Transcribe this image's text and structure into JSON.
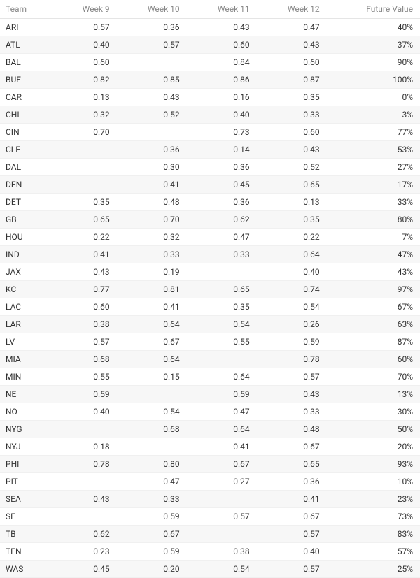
{
  "table": {
    "columns": [
      "Team",
      "Week 9",
      "Week 10",
      "Week 11",
      "Week 12",
      "Future Value"
    ],
    "column_classes": [
      "col-team",
      "col-week",
      "col-week",
      "col-week",
      "col-week",
      "col-future"
    ],
    "header_color": "#888888",
    "text_color": "#333333",
    "row_alt_bg": "#f7f7f7",
    "row_bg": "#ffffff",
    "border_color": "#e5e5e5",
    "fontsize": 12,
    "rows": [
      [
        "ARI",
        "0.57",
        "0.36",
        "0.43",
        "0.47",
        "40%"
      ],
      [
        "ATL",
        "0.40",
        "0.57",
        "0.60",
        "0.43",
        "37%"
      ],
      [
        "BAL",
        "0.60",
        "",
        "0.84",
        "0.60",
        "90%"
      ],
      [
        "BUF",
        "0.82",
        "0.85",
        "0.86",
        "0.87",
        "100%"
      ],
      [
        "CAR",
        "0.13",
        "0.43",
        "0.16",
        "0.35",
        "0%"
      ],
      [
        "CHI",
        "0.32",
        "0.52",
        "0.40",
        "0.33",
        "3%"
      ],
      [
        "CIN",
        "0.70",
        "",
        "0.73",
        "0.60",
        "77%"
      ],
      [
        "CLE",
        "",
        "0.36",
        "0.14",
        "0.43",
        "53%"
      ],
      [
        "DAL",
        "",
        "0.30",
        "0.36",
        "0.52",
        "27%"
      ],
      [
        "DEN",
        "",
        "0.41",
        "0.45",
        "0.65",
        "17%"
      ],
      [
        "DET",
        "0.35",
        "0.48",
        "0.36",
        "0.13",
        "33%"
      ],
      [
        "GB",
        "0.65",
        "0.70",
        "0.62",
        "0.35",
        "80%"
      ],
      [
        "HOU",
        "0.22",
        "0.32",
        "0.47",
        "0.22",
        "7%"
      ],
      [
        "IND",
        "0.41",
        "0.33",
        "0.33",
        "0.64",
        "47%"
      ],
      [
        "JAX",
        "0.43",
        "0.19",
        "",
        "0.40",
        "43%"
      ],
      [
        "KC",
        "0.77",
        "0.81",
        "0.65",
        "0.74",
        "97%"
      ],
      [
        "LAC",
        "0.60",
        "0.41",
        "0.35",
        "0.54",
        "67%"
      ],
      [
        "LAR",
        "0.38",
        "0.64",
        "0.54",
        "0.26",
        "63%"
      ],
      [
        "LV",
        "0.57",
        "0.67",
        "0.55",
        "0.59",
        "87%"
      ],
      [
        "MIA",
        "0.68",
        "0.64",
        "",
        "0.78",
        "60%"
      ],
      [
        "MIN",
        "0.55",
        "0.15",
        "0.64",
        "0.57",
        "70%"
      ],
      [
        "NE",
        "0.59",
        "",
        "0.59",
        "0.43",
        "13%"
      ],
      [
        "NO",
        "0.40",
        "0.54",
        "0.47",
        "0.33",
        "30%"
      ],
      [
        "NYG",
        "",
        "0.68",
        "0.64",
        "0.48",
        "50%"
      ],
      [
        "NYJ",
        "0.18",
        "",
        "0.41",
        "0.67",
        "20%"
      ],
      [
        "PHI",
        "0.78",
        "0.80",
        "0.67",
        "0.65",
        "93%"
      ],
      [
        "PIT",
        "",
        "0.47",
        "0.27",
        "0.36",
        "10%"
      ],
      [
        "SEA",
        "0.43",
        "0.33",
        "",
        "0.41",
        "23%"
      ],
      [
        "SF",
        "",
        "0.59",
        "0.57",
        "0.67",
        "73%"
      ],
      [
        "TB",
        "0.62",
        "0.67",
        "",
        "0.57",
        "83%"
      ],
      [
        "TEN",
        "0.23",
        "0.59",
        "0.38",
        "0.40",
        "57%"
      ],
      [
        "WAS",
        "0.45",
        "0.20",
        "0.54",
        "0.57",
        "25%"
      ]
    ]
  }
}
